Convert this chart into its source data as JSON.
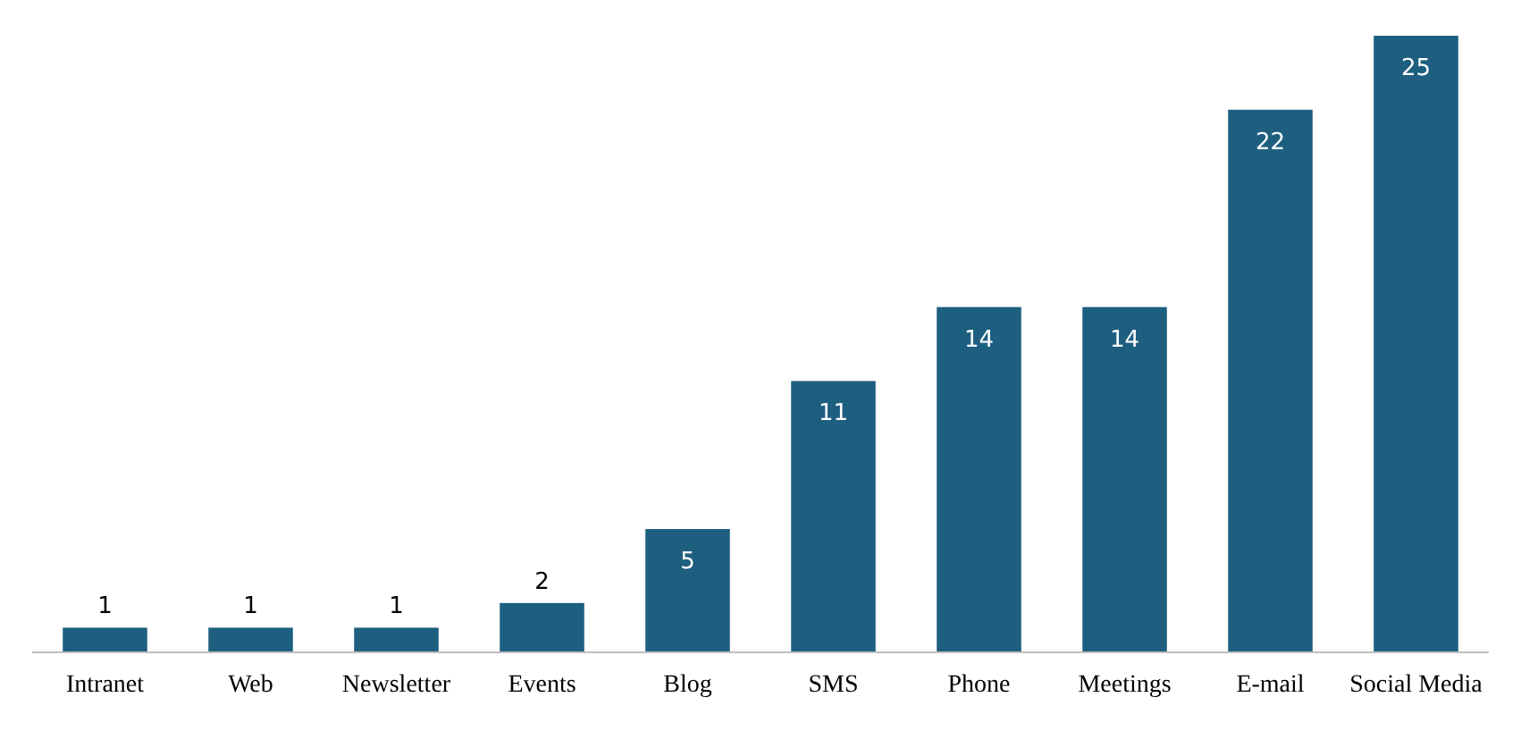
{
  "chart_data": {
    "type": "bar",
    "categories": [
      "Intranet",
      "Web",
      "Newsletter",
      "Events",
      "Blog",
      "SMS",
      "Phone",
      "Meetings",
      "E-mail",
      "Social Media"
    ],
    "values": [
      1,
      1,
      1,
      2,
      5,
      11,
      14,
      14,
      22,
      25
    ],
    "color": "#1e5f80",
    "data_labels": true
  }
}
